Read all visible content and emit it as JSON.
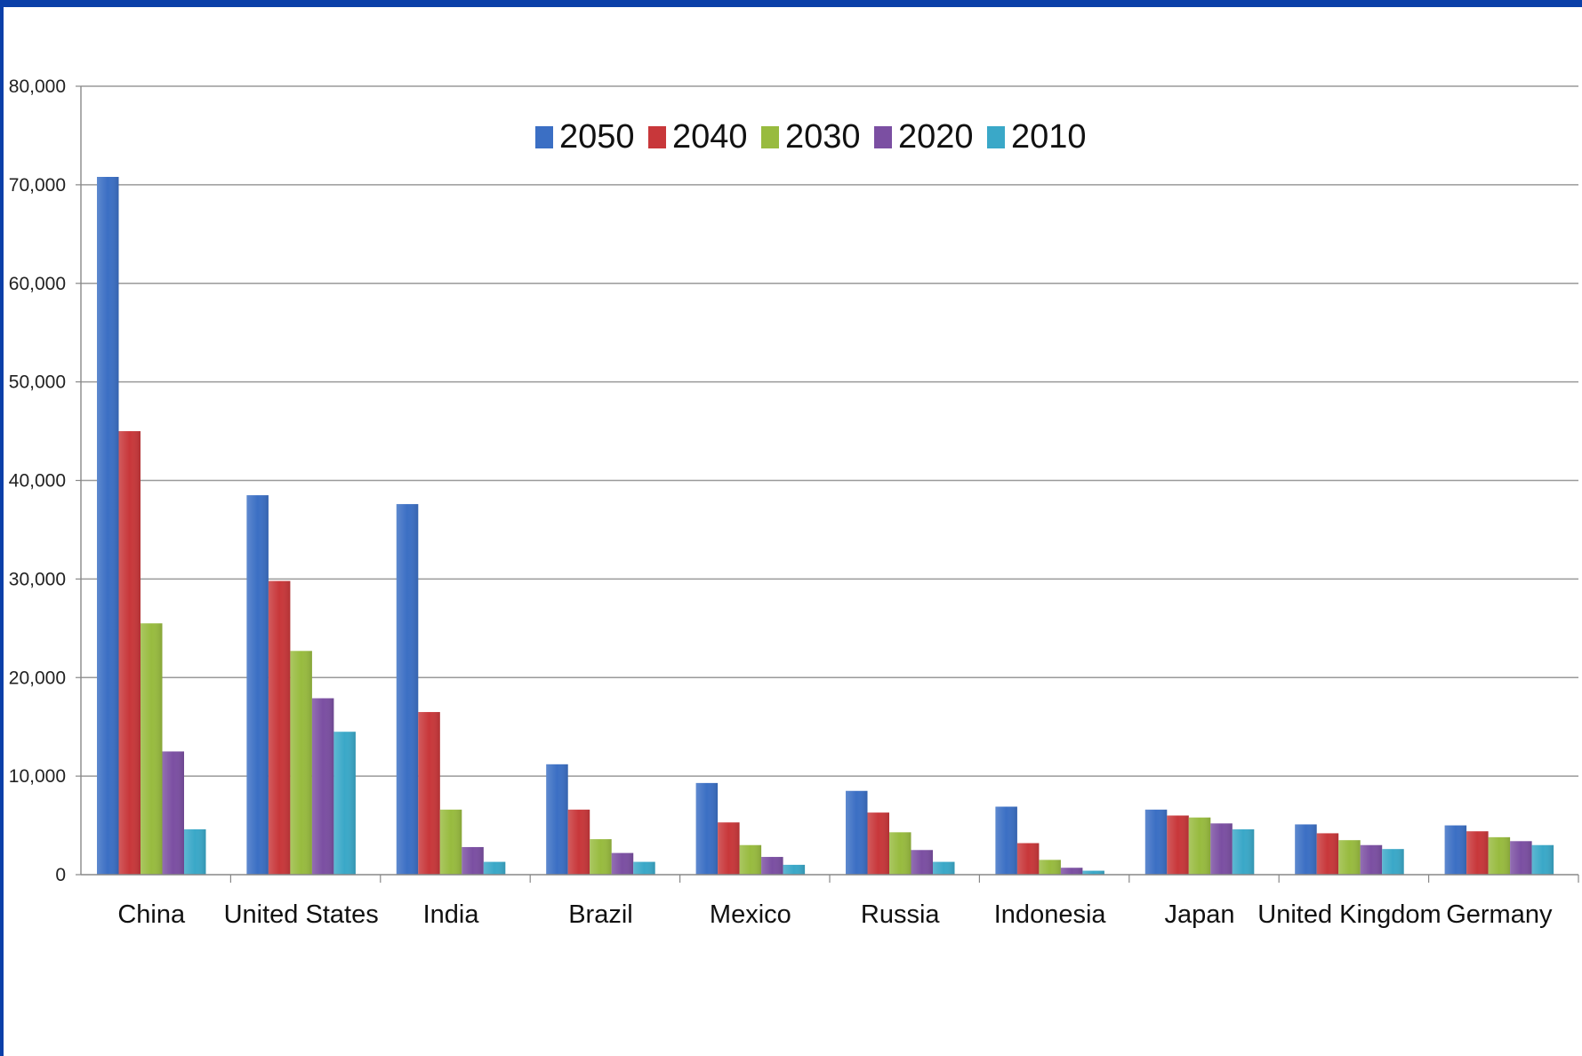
{
  "chart_data": {
    "type": "bar",
    "categories": [
      "China",
      "United States",
      "India",
      "Brazil",
      "Mexico",
      "Russia",
      "Indonesia",
      "Japan",
      "United Kingdom",
      "Germany"
    ],
    "series": [
      {
        "name": "2050",
        "color": "#3b6fc4",
        "values": [
          70800,
          38500,
          37600,
          11200,
          9300,
          8500,
          6900,
          6600,
          5100,
          5000
        ]
      },
      {
        "name": "2040",
        "color": "#c8373a",
        "values": [
          45000,
          29800,
          16500,
          6600,
          5300,
          6300,
          3200,
          6000,
          4200,
          4400
        ]
      },
      {
        "name": "2030",
        "color": "#98bb3f",
        "values": [
          25500,
          22700,
          6600,
          3600,
          3000,
          4300,
          1500,
          5800,
          3500,
          3800
        ]
      },
      {
        "name": "2020",
        "color": "#7b4fa2",
        "values": [
          12500,
          17900,
          2800,
          2200,
          1800,
          2500,
          700,
          5200,
          3000,
          3400
        ]
      },
      {
        "name": "2010",
        "color": "#3aa8c8",
        "values": [
          4600,
          14500,
          1300,
          1300,
          1000,
          1300,
          400,
          4600,
          2600,
          3000
        ]
      }
    ],
    "yticks": [
      "0",
      "10,000",
      "20,000",
      "30,000",
      "40,000",
      "50,000",
      "60,000",
      "70,000",
      "80,000"
    ],
    "ylim": [
      0,
      80000
    ],
    "grid": true,
    "legend_position": "top-center"
  }
}
